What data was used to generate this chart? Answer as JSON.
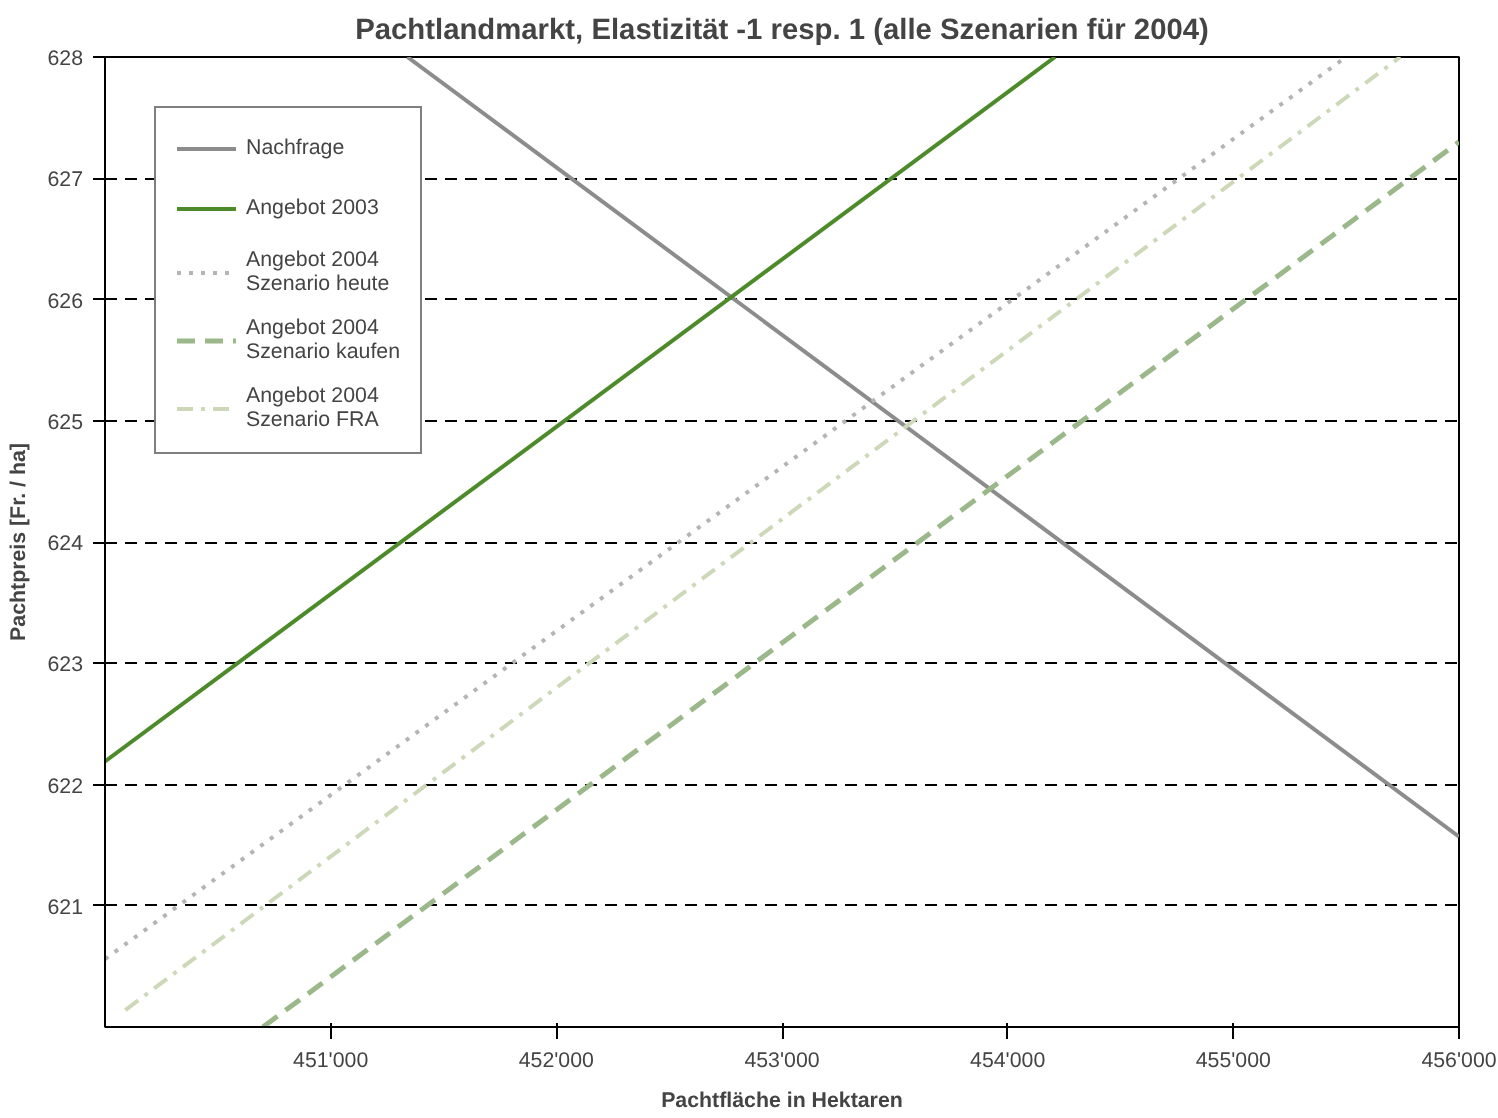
{
  "chart_data": {
    "type": "line",
    "title": "Pachtlandmarkt, Elastizität -1 resp. 1 (alle Szenarien für 2004)",
    "xlabel": "Pachtfläche in Hektaren",
    "ylabel": "Pachtpreis [Fr. / ha]",
    "xlim": [
      450000,
      456000
    ],
    "ylim": [
      620,
      628
    ],
    "xticks": [
      {
        "value": 451000,
        "label": "451'000"
      },
      {
        "value": 452000,
        "label": "452'000"
      },
      {
        "value": 453000,
        "label": "453'000"
      },
      {
        "value": 454000,
        "label": "454'000"
      },
      {
        "value": 455000,
        "label": "455'000"
      },
      {
        "value": 456000,
        "label": "456'000"
      }
    ],
    "yticks": [
      621,
      622,
      623,
      624,
      625,
      626,
      627,
      628
    ],
    "grid": "y",
    "legend": "top left",
    "marker": "none",
    "series": [
      {
        "name": "Nachfrage",
        "color": "#8c8c8c",
        "line_style": "solid",
        "x": [
          451340,
          456000
        ],
        "values": [
          628,
          621.57
        ]
      },
      {
        "name": "Angebot 2003",
        "color": "#4d8a2a",
        "line_style": "solid",
        "x": [
          450000,
          454210
        ],
        "values": [
          622.19,
          628
        ]
      },
      {
        "name": "Angebot 2004\nSzenario heute",
        "color": "#b4b4b4",
        "line_style": "dotted",
        "x": [
          450000,
          455500
        ],
        "values": [
          620.56,
          628
        ]
      },
      {
        "name": "Angebot 2004\nSzenario kaufen",
        "color": "#9bb88a",
        "line_style": "dashed",
        "x": [
          450700,
          456000
        ],
        "values": [
          620,
          627.3
        ]
      },
      {
        "name": "Angebot 2004\nSzenario FRA",
        "color": "#ccd8b8",
        "line_style": "dashdot",
        "x": [
          450090,
          455740
        ],
        "values": [
          620.14,
          628
        ]
      }
    ]
  }
}
